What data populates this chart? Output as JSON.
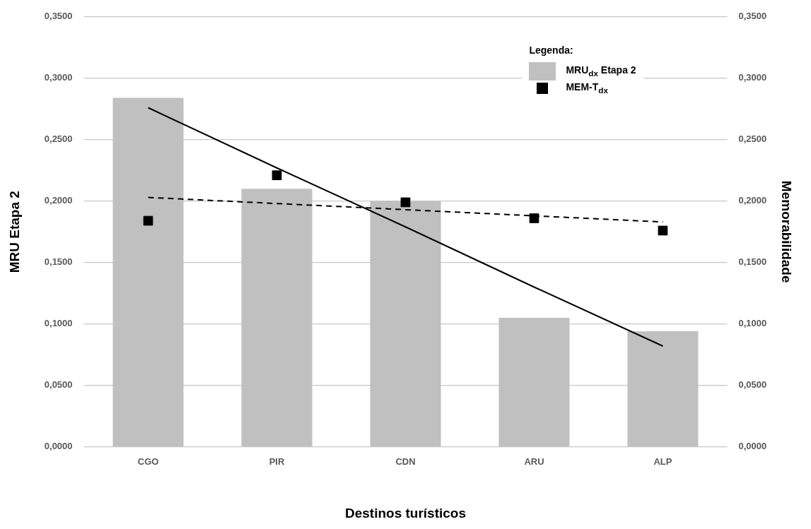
{
  "chart_data": {
    "type": "bar",
    "xlabel": "Destinos turísticos",
    "ylabel": "MRU Etapa 2",
    "y2label": "Memorabilidade",
    "legend_title": "Legenda:",
    "legend": "top right",
    "grid": "y",
    "categories": [
      "CGO",
      "PIR",
      "CDN",
      "ARU",
      "ALP"
    ],
    "series": [
      {
        "name": "MRU$_{dx}$ Etapa 2",
        "color": "#c0c0c0",
        "values": [
          0.284,
          0.21,
          0.2,
          0.105,
          0.094
        ]
      },
      {
        "name": "MEM-T$_{dx}$",
        "type": "scatter",
        "axis": "y2",
        "marker": "square",
        "color": "#000000",
        "values": [
          0.184,
          0.221,
          0.199,
          0.186,
          0.176
        ]
      },
      {
        "type": "line",
        "color": "#000000",
        "line_style": "solid",
        "marker": "none",
        "values": [
          0.276,
          0.227,
          0.179,
          0.13,
          0.082
        ]
      },
      {
        "type": "line",
        "axis": "y2",
        "color": "#000000",
        "line_style": "dashed",
        "marker": "none",
        "values": [
          0.203,
          0.198,
          0.193,
          0.188,
          0.183
        ]
      }
    ],
    "ylim": [
      0,
      0.35
    ],
    "yticks": [
      {
        "value": 0,
        "label": "0,0000"
      },
      {
        "value": 0.05,
        "label": "0,0500"
      },
      {
        "value": 0.1,
        "label": "0,1000"
      },
      {
        "value": 0.15,
        "label": "0,1500"
      },
      {
        "value": 0.2,
        "label": "0,2000"
      },
      {
        "value": 0.25,
        "label": "0,2500"
      },
      {
        "value": 0.3,
        "label": "0,3000"
      },
      {
        "value": 0.35,
        "label": "0,3500"
      }
    ],
    "y2lim": [
      0,
      0.35
    ],
    "y2ticks": [
      {
        "value": 0,
        "label": "0,0000"
      },
      {
        "value": 0.05,
        "label": "0,0500"
      },
      {
        "value": 0.1,
        "label": "0,1000"
      },
      {
        "value": 0.15,
        "label": "0,1500"
      },
      {
        "value": 0.2,
        "label": "0,2000"
      },
      {
        "value": 0.25,
        "label": "0,2500"
      },
      {
        "value": 0.3,
        "label": "0,3000"
      },
      {
        "value": 0.35,
        "label": "0,3500"
      }
    ]
  }
}
